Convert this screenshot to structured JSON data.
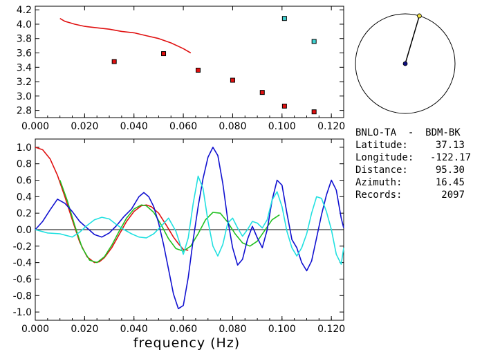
{
  "colors": {
    "red": "#e01010",
    "blue": "#1010d0",
    "cyan": "#20e0e0",
    "green": "#20c020",
    "axis": "#000000",
    "marker_cyan": "#40d0d0",
    "marker_yellow": "#f0e040",
    "marker_navy": "#101080"
  },
  "info_panel": {
    "title": "BNLO-TA  -  BDM-BK",
    "rows": [
      {
        "label": "Latitude:",
        "value": "37.13"
      },
      {
        "label": "Longitude:",
        "value": "-122.17"
      },
      {
        "label": "Distance:",
        "value": "95.30"
      },
      {
        "label": "Azimuth:",
        "value": "16.45"
      },
      {
        "label": "Records:",
        "value": "2097"
      }
    ]
  },
  "chart_data": [
    {
      "type": "scatter",
      "xlabel": "",
      "ylabel": "",
      "xlim": [
        0.0,
        0.125
      ],
      "ylim": [
        2.7,
        4.25
      ],
      "x_ticks": [
        "0.000",
        "0.020",
        "0.040",
        "0.060",
        "0.080",
        "0.100",
        "0.120"
      ],
      "y_ticks": [
        "2.8",
        "3.0",
        "3.2",
        "3.4",
        "3.6",
        "3.8",
        "4.0",
        "4.2"
      ],
      "series": [
        {
          "marker": "square",
          "color": "#e01010",
          "x": [
            0.032,
            0.052,
            0.066,
            0.08,
            0.092,
            0.101,
            0.113
          ],
          "y": [
            3.48,
            3.59,
            3.36,
            3.22,
            3.05,
            2.86,
            2.78
          ]
        },
        {
          "marker": "square",
          "color": "#40d0d0",
          "x": [
            0.101,
            0.113
          ],
          "y": [
            4.08,
            3.76
          ]
        },
        {
          "type": "line",
          "color": "#e01010",
          "x": [
            0.01,
            0.012,
            0.014,
            0.016,
            0.02,
            0.025,
            0.03,
            0.035,
            0.04,
            0.045,
            0.05,
            0.055,
            0.06,
            0.063
          ],
          "y": [
            4.08,
            4.04,
            4.02,
            4.0,
            3.97,
            3.95,
            3.93,
            3.9,
            3.88,
            3.84,
            3.8,
            3.74,
            3.66,
            3.6
          ]
        }
      ]
    },
    {
      "type": "line",
      "xlabel": "frequency (Hz)",
      "ylabel": "",
      "xlim": [
        0.0,
        0.125
      ],
      "ylim": [
        -1.1,
        1.1
      ],
      "x_ticks": [
        "0.000",
        "0.020",
        "0.040",
        "0.060",
        "0.080",
        "0.100",
        "0.120"
      ],
      "y_ticks": [
        "1.0",
        "0.8",
        "0.6",
        "0.4",
        "0.2",
        "0.0",
        "-0.2",
        "-0.4",
        "-0.6",
        "-0.8",
        "-1.0"
      ],
      "series": [
        {
          "color": "#e01010",
          "x": [
            0.0,
            0.003,
            0.006,
            0.009,
            0.012,
            0.015,
            0.018,
            0.021,
            0.024,
            0.026,
            0.028,
            0.031,
            0.034,
            0.037,
            0.04,
            0.043,
            0.045,
            0.047,
            0.05,
            0.053,
            0.056,
            0.058,
            0.06,
            0.062
          ],
          "y": [
            1.0,
            0.97,
            0.86,
            0.66,
            0.4,
            0.12,
            -0.15,
            -0.33,
            -0.4,
            -0.39,
            -0.34,
            -0.22,
            -0.06,
            0.1,
            0.22,
            0.29,
            0.3,
            0.28,
            0.2,
            0.06,
            -0.09,
            -0.17,
            -0.24,
            -0.25
          ]
        },
        {
          "color": "#20c020",
          "x": [
            0.01,
            0.013,
            0.016,
            0.019,
            0.022,
            0.025,
            0.028,
            0.031,
            0.034,
            0.037,
            0.04,
            0.043,
            0.045,
            0.048,
            0.051,
            0.054,
            0.057,
            0.06,
            0.063,
            0.066,
            0.069,
            0.072,
            0.075,
            0.078,
            0.081,
            0.084,
            0.087,
            0.09,
            0.093,
            0.096,
            0.099
          ],
          "y": [
            0.6,
            0.35,
            0.05,
            -0.22,
            -0.37,
            -0.4,
            -0.33,
            -0.19,
            -0.02,
            0.14,
            0.25,
            0.3,
            0.29,
            0.21,
            0.06,
            -0.11,
            -0.23,
            -0.26,
            -0.2,
            -0.05,
            0.12,
            0.21,
            0.2,
            0.09,
            -0.05,
            -0.16,
            -0.2,
            -0.14,
            -0.01,
            0.12,
            0.18
          ]
        },
        {
          "color": "#1010d0",
          "x": [
            0.0,
            0.003,
            0.006,
            0.009,
            0.012,
            0.015,
            0.018,
            0.021,
            0.024,
            0.027,
            0.03,
            0.033,
            0.036,
            0.039,
            0.042,
            0.044,
            0.046,
            0.048,
            0.05,
            0.052,
            0.054,
            0.056,
            0.058,
            0.06,
            0.062,
            0.064,
            0.066,
            0.068,
            0.07,
            0.072,
            0.074,
            0.076,
            0.078,
            0.08,
            0.082,
            0.084,
            0.086,
            0.088,
            0.09,
            0.092,
            0.094,
            0.096,
            0.098,
            0.1,
            0.102,
            0.104,
            0.106,
            0.108,
            0.11,
            0.112,
            0.114,
            0.116,
            0.118,
            0.12,
            0.122,
            0.124,
            0.125
          ],
          "y": [
            0.0,
            0.1,
            0.24,
            0.37,
            0.32,
            0.22,
            0.1,
            0.02,
            -0.06,
            -0.09,
            -0.04,
            0.05,
            0.16,
            0.25,
            0.4,
            0.45,
            0.4,
            0.28,
            0.08,
            -0.18,
            -0.48,
            -0.78,
            -0.96,
            -0.92,
            -0.58,
            -0.12,
            0.28,
            0.62,
            0.88,
            1.0,
            0.9,
            0.56,
            0.12,
            -0.22,
            -0.43,
            -0.36,
            -0.12,
            0.04,
            -0.1,
            -0.22,
            0.0,
            0.36,
            0.6,
            0.54,
            0.2,
            -0.12,
            -0.22,
            -0.4,
            -0.5,
            -0.38,
            -0.1,
            0.18,
            0.42,
            0.6,
            0.48,
            0.14,
            0.02
          ]
        },
        {
          "color": "#20e0e0",
          "x": [
            0.0,
            0.005,
            0.01,
            0.015,
            0.018,
            0.021,
            0.024,
            0.027,
            0.03,
            0.033,
            0.036,
            0.039,
            0.042,
            0.045,
            0.048,
            0.051,
            0.054,
            0.057,
            0.06,
            0.062,
            0.064,
            0.066,
            0.068,
            0.07,
            0.072,
            0.074,
            0.076,
            0.078,
            0.08,
            0.082,
            0.084,
            0.086,
            0.088,
            0.09,
            0.092,
            0.094,
            0.096,
            0.098,
            0.1,
            0.102,
            0.104,
            0.106,
            0.108,
            0.11,
            0.112,
            0.114,
            0.116,
            0.118,
            0.12,
            0.122,
            0.124,
            0.125
          ],
          "y": [
            0.0,
            -0.04,
            -0.05,
            -0.09,
            -0.03,
            0.05,
            0.12,
            0.15,
            0.13,
            0.06,
            0.0,
            -0.05,
            -0.09,
            -0.1,
            -0.05,
            0.04,
            0.14,
            -0.02,
            -0.3,
            -0.1,
            0.32,
            0.65,
            0.5,
            0.1,
            -0.2,
            -0.32,
            -0.18,
            0.08,
            0.14,
            0.02,
            -0.08,
            0.0,
            0.1,
            0.08,
            0.02,
            0.12,
            0.36,
            0.46,
            0.28,
            -0.02,
            -0.22,
            -0.32,
            -0.22,
            -0.05,
            0.2,
            0.4,
            0.38,
            0.22,
            0.0,
            -0.3,
            -0.42,
            -0.22
          ]
        }
      ]
    }
  ],
  "polar_inset": {
    "azimuth_deg": 16.45,
    "center_color": "#101080",
    "end_color": "#f0e040"
  }
}
